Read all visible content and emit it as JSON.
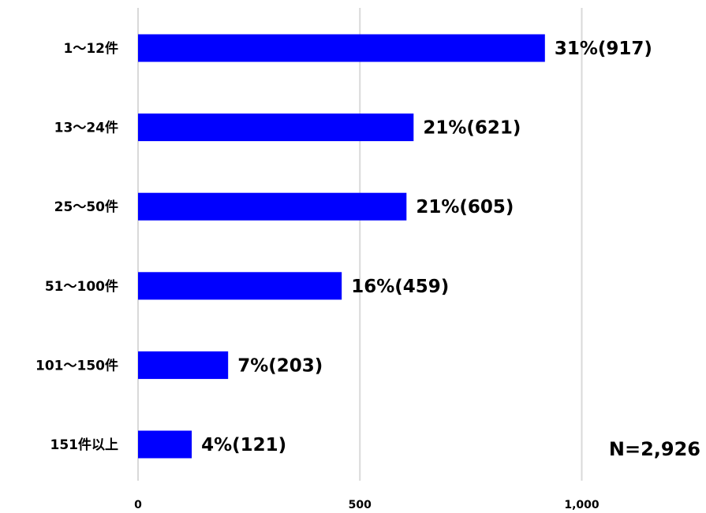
{
  "chart_data": {
    "type": "bar",
    "orientation": "horizontal",
    "categories": [
      "1～12件",
      "13～24件",
      "25～50件",
      "51～100件",
      "101～150件",
      "151件以上"
    ],
    "values": [
      917,
      621,
      605,
      459,
      203,
      121
    ],
    "data_labels": [
      "31%(917)",
      "21%(621)",
      "21%(605)",
      "16%(459)",
      "7%(203)",
      "4%(121)"
    ],
    "xlim": [
      0,
      1300
    ],
    "x_ticks": [
      0,
      500,
      1000
    ],
    "x_tick_labels": [
      "0",
      "500",
      "1,000"
    ],
    "grid": true,
    "legend": "none",
    "bar_color": "#0000ff",
    "grid_color": "#d9d9d9",
    "annotation": "N=2,926"
  }
}
